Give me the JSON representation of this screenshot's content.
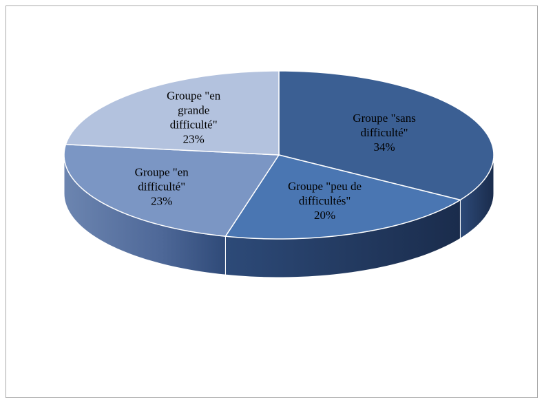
{
  "chart_data": {
    "type": "pie",
    "style": "3d",
    "slices": [
      {
        "label_lines": [
          "Groupe \"sans",
          "difficulté\"",
          "34%"
        ],
        "value": 34,
        "color": "#3b5f93"
      },
      {
        "label_lines": [
          "Groupe \"peu de",
          "difficultés\"",
          "20%"
        ],
        "value": 20,
        "color": "#4a76b2"
      },
      {
        "label_lines": [
          "Groupe \"en",
          "difficulté\"",
          "23%"
        ],
        "value": 23,
        "color": "#7b96c4"
      },
      {
        "label_lines": [
          "Groupe \"en",
          "grande",
          "difficulté\"",
          "23%"
        ],
        "value": 23,
        "color": "#b3c2de"
      }
    ],
    "start_direction": "top",
    "legend": "none",
    "grid": false
  }
}
